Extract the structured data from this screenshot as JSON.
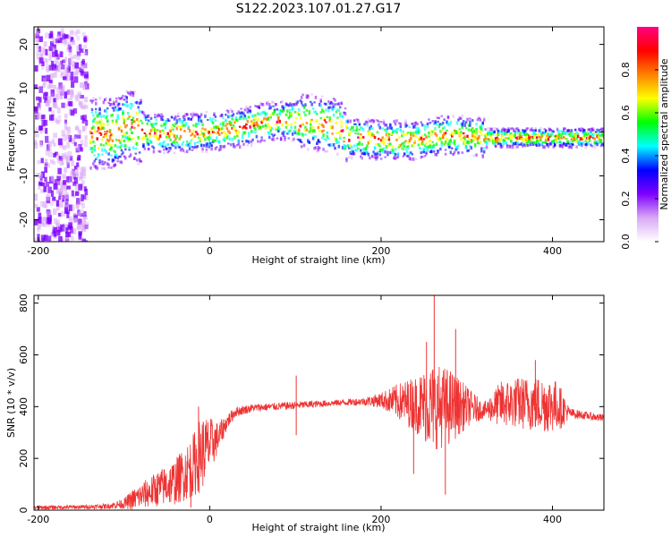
{
  "title": "S122.2023.107.01.27.G17",
  "chart_data": [
    {
      "type": "heatmap",
      "xlabel": "Height of straight line (km)",
      "ylabel": "Frequency (Hz)",
      "xlim": [
        -205,
        460
      ],
      "ylim": [
        -25,
        24
      ],
      "xticks": [
        -200,
        0,
        200,
        400
      ],
      "yticks": [
        -20,
        -10,
        0,
        10,
        20
      ],
      "colorbar": {
        "label": "Normalized spectral amplitude",
        "range": [
          0,
          1
        ],
        "ticks": [
          0.0,
          0.2,
          0.4,
          0.6,
          0.8
        ],
        "tick_labels": [
          "0.0",
          "0.2",
          "0.4",
          "0.6",
          "0.8"
        ],
        "colormap": [
          "#ffffff",
          "#d9a8f5",
          "#7e00ff",
          "#0000ff",
          "#00ffff",
          "#00ff00",
          "#ffff00",
          "#ff8000",
          "#ff0000",
          "#ff0080"
        ]
      },
      "center_frequency_trace": [
        {
          "x": -110,
          "y": 0
        },
        {
          "x": -95,
          "y": 2
        },
        {
          "x": -85,
          "y": 1
        },
        {
          "x": -70,
          "y": 0
        },
        {
          "x": -40,
          "y": 0
        },
        {
          "x": -10,
          "y": 0.3
        },
        {
          "x": 10,
          "y": 0.5
        },
        {
          "x": 40,
          "y": 1.5
        },
        {
          "x": 60,
          "y": 2.5
        },
        {
          "x": 90,
          "y": 3
        },
        {
          "x": 120,
          "y": 2.5
        },
        {
          "x": 150,
          "y": 1.5
        },
        {
          "x": 160,
          "y": -1
        },
        {
          "x": 200,
          "y": -1.5
        },
        {
          "x": 240,
          "y": -1.5
        },
        {
          "x": 270,
          "y": -0.5
        },
        {
          "x": 300,
          "y": -0.5
        },
        {
          "x": 320,
          "y": -1
        },
        {
          "x": 400,
          "y": -1
        },
        {
          "x": 460,
          "y": -1
        }
      ]
    },
    {
      "type": "line",
      "xlabel": "Height of straight line (km)",
      "ylabel": "SNR (10 * v/v)",
      "xlim": [
        -205,
        460
      ],
      "ylim": [
        0,
        830
      ],
      "xticks": [
        -200,
        0,
        200,
        400
      ],
      "yticks": [
        0,
        200,
        400,
        600,
        800
      ],
      "color": "#ee3333",
      "series": [
        {
          "envelope": [
            {
              "x": -205,
              "mid": 10,
              "spread": 8
            },
            {
              "x": -150,
              "mid": 12,
              "spread": 8
            },
            {
              "x": -120,
              "mid": 15,
              "spread": 10
            },
            {
              "x": -100,
              "mid": 25,
              "spread": 20
            },
            {
              "x": -90,
              "mid": 40,
              "spread": 40
            },
            {
              "x": -70,
              "mid": 70,
              "spread": 60
            },
            {
              "x": -40,
              "mid": 110,
              "spread": 90
            },
            {
              "x": -20,
              "mid": 170,
              "spread": 120
            },
            {
              "x": -10,
              "mid": 220,
              "spread": 150
            },
            {
              "x": 0,
              "mid": 250,
              "spread": 110
            },
            {
              "x": 10,
              "mid": 280,
              "spread": 60
            },
            {
              "x": 20,
              "mid": 340,
              "spread": 30
            },
            {
              "x": 30,
              "mid": 380,
              "spread": 20
            },
            {
              "x": 50,
              "mid": 395,
              "spread": 15
            },
            {
              "x": 100,
              "mid": 405,
              "spread": 15
            },
            {
              "x": 150,
              "mid": 415,
              "spread": 12
            },
            {
              "x": 180,
              "mid": 420,
              "spread": 15
            },
            {
              "x": 200,
              "mid": 425,
              "spread": 30
            },
            {
              "x": 220,
              "mid": 420,
              "spread": 70
            },
            {
              "x": 240,
              "mid": 410,
              "spread": 110
            },
            {
              "x": 260,
              "mid": 400,
              "spread": 170
            },
            {
              "x": 280,
              "mid": 400,
              "spread": 150
            },
            {
              "x": 300,
              "mid": 400,
              "spread": 80
            },
            {
              "x": 320,
              "mid": 385,
              "spread": 30
            },
            {
              "x": 340,
              "mid": 410,
              "spread": 90
            },
            {
              "x": 360,
              "mid": 415,
              "spread": 100
            },
            {
              "x": 380,
              "mid": 410,
              "spread": 110
            },
            {
              "x": 400,
              "mid": 410,
              "spread": 110
            },
            {
              "x": 410,
              "mid": 395,
              "spread": 80
            },
            {
              "x": 420,
              "mid": 375,
              "spread": 20
            },
            {
              "x": 440,
              "mid": 365,
              "spread": 15
            },
            {
              "x": 460,
              "mid": 355,
              "spread": 15
            }
          ],
          "spikes": [
            {
              "x": 101,
              "y": 520
            },
            {
              "x": 101,
              "y": 290
            },
            {
              "x": 262,
              "y": 830
            },
            {
              "x": 253,
              "y": 650
            },
            {
              "x": 275,
              "y": 60
            },
            {
              "x": 287,
              "y": 700
            },
            {
              "x": 238,
              "y": 140
            },
            {
              "x": -13,
              "y": 400
            },
            {
              "x": -22,
              "y": 10
            },
            {
              "x": 380,
              "y": 580
            }
          ]
        }
      ]
    }
  ]
}
